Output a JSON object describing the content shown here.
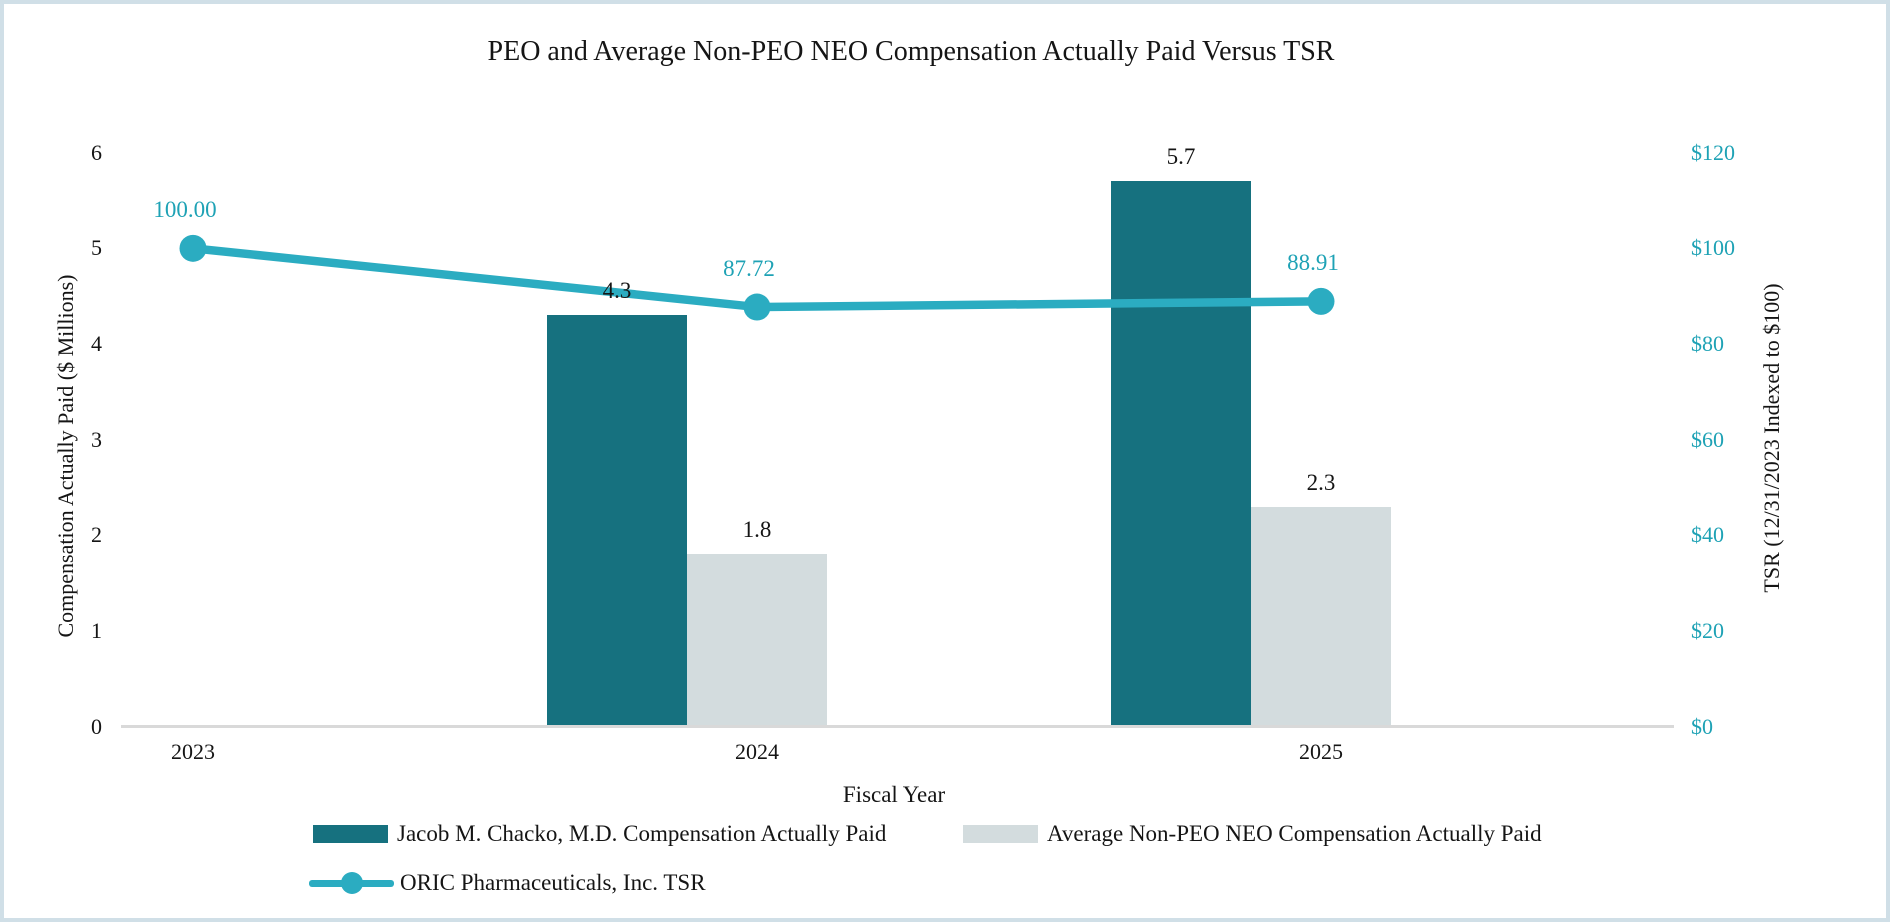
{
  "frame": {
    "background": "#ffffff",
    "border_color": "#d0dfe7"
  },
  "chart_data": {
    "type": "combo-bar-line",
    "title": "PEO and Average Non-PEO NEO Compensation Actually Paid Versus TSR",
    "x_axis": {
      "title": "Fiscal Year",
      "categories": [
        "2023",
        "2024",
        "2025"
      ]
    },
    "left_axis": {
      "title": "Compensation Actually Paid ($ Millions)",
      "ticks": [
        "0",
        "1",
        "2",
        "3",
        "4",
        "5",
        "6"
      ],
      "min": 0,
      "max": 6,
      "color": "#151515"
    },
    "right_axis": {
      "title": "TSR (12/31/2023 Indexed to $100)",
      "ticks": [
        "$0",
        "$20",
        "$40",
        "$60",
        "$80",
        "$100",
        "$120"
      ],
      "min": 0,
      "max": 120,
      "color": "#1ea2b5"
    },
    "gridlines": false,
    "legend_position": "bottom",
    "axis_line_color": "#d9d9d9",
    "series": [
      {
        "name": "Jacob M. Chacko, M.D. Compensation Actually Paid",
        "type": "bar",
        "axis": "left",
        "color": "#16717f",
        "values": [
          null,
          4.3,
          5.7
        ],
        "labels": [
          "",
          "4.3",
          "5.7"
        ],
        "label_color": "#151515"
      },
      {
        "name": "Average Non-PEO NEO Compensation Actually Paid",
        "type": "bar",
        "axis": "left",
        "color": "#d3dcde",
        "values": [
          null,
          1.8,
          2.3
        ],
        "labels": [
          "",
          "1.8",
          "2.3"
        ],
        "label_color": "#151515"
      },
      {
        "name": "ORIC Pharmaceuticals, Inc. TSR",
        "type": "line",
        "axis": "right",
        "color": "#2bacc1",
        "values": [
          100.0,
          87.72,
          88.91
        ],
        "labels": [
          "100.00",
          "87.72",
          "88.91"
        ],
        "label_color": "#1ea2b5"
      }
    ]
  }
}
